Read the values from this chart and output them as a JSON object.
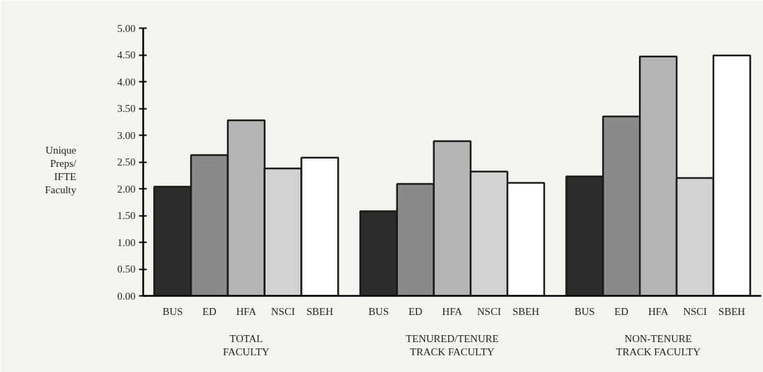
{
  "chart_data": {
    "type": "bar",
    "ylabel": "Unique Preps/ IFTE Faculty",
    "categories": [
      "TOTAL FACULTY",
      "TENURED/TENURE TRACK FACULTY",
      "NON-TENURE TRACK FACULTY"
    ],
    "series": [
      {
        "name": "BUS",
        "color": "#2b2b2b",
        "values": [
          2.04,
          1.58,
          2.23
        ]
      },
      {
        "name": "ED",
        "color": "#8a8a8a",
        "values": [
          2.63,
          2.09,
          3.35
        ]
      },
      {
        "name": "HFA",
        "color": "#b5b5b5",
        "values": [
          3.28,
          2.89,
          4.47
        ]
      },
      {
        "name": "NSCI",
        "color": "#d2d2d2",
        "values": [
          2.38,
          2.32,
          2.2
        ]
      },
      {
        "name": "SBEH",
        "color": "#ffffff",
        "values": [
          2.58,
          2.11,
          4.49
        ]
      }
    ],
    "ylim": [
      0,
      5
    ],
    "yticks": [
      {
        "value": 0,
        "label": "0.00"
      },
      {
        "value": 0.5,
        "label": "0.50"
      },
      {
        "value": 1,
        "label": "1.00"
      },
      {
        "value": 1.5,
        "label": "1.50"
      },
      {
        "value": 2,
        "label": "2.00"
      },
      {
        "value": 2.5,
        "label": "2.50"
      },
      {
        "value": 3,
        "label": "3.00"
      },
      {
        "value": 3.5,
        "label": "3.50"
      },
      {
        "value": 4,
        "label": "4.00"
      },
      {
        "value": 4.5,
        "label": "4.50"
      },
      {
        "value": 5,
        "label": "5.00"
      }
    ],
    "grid": false
  }
}
